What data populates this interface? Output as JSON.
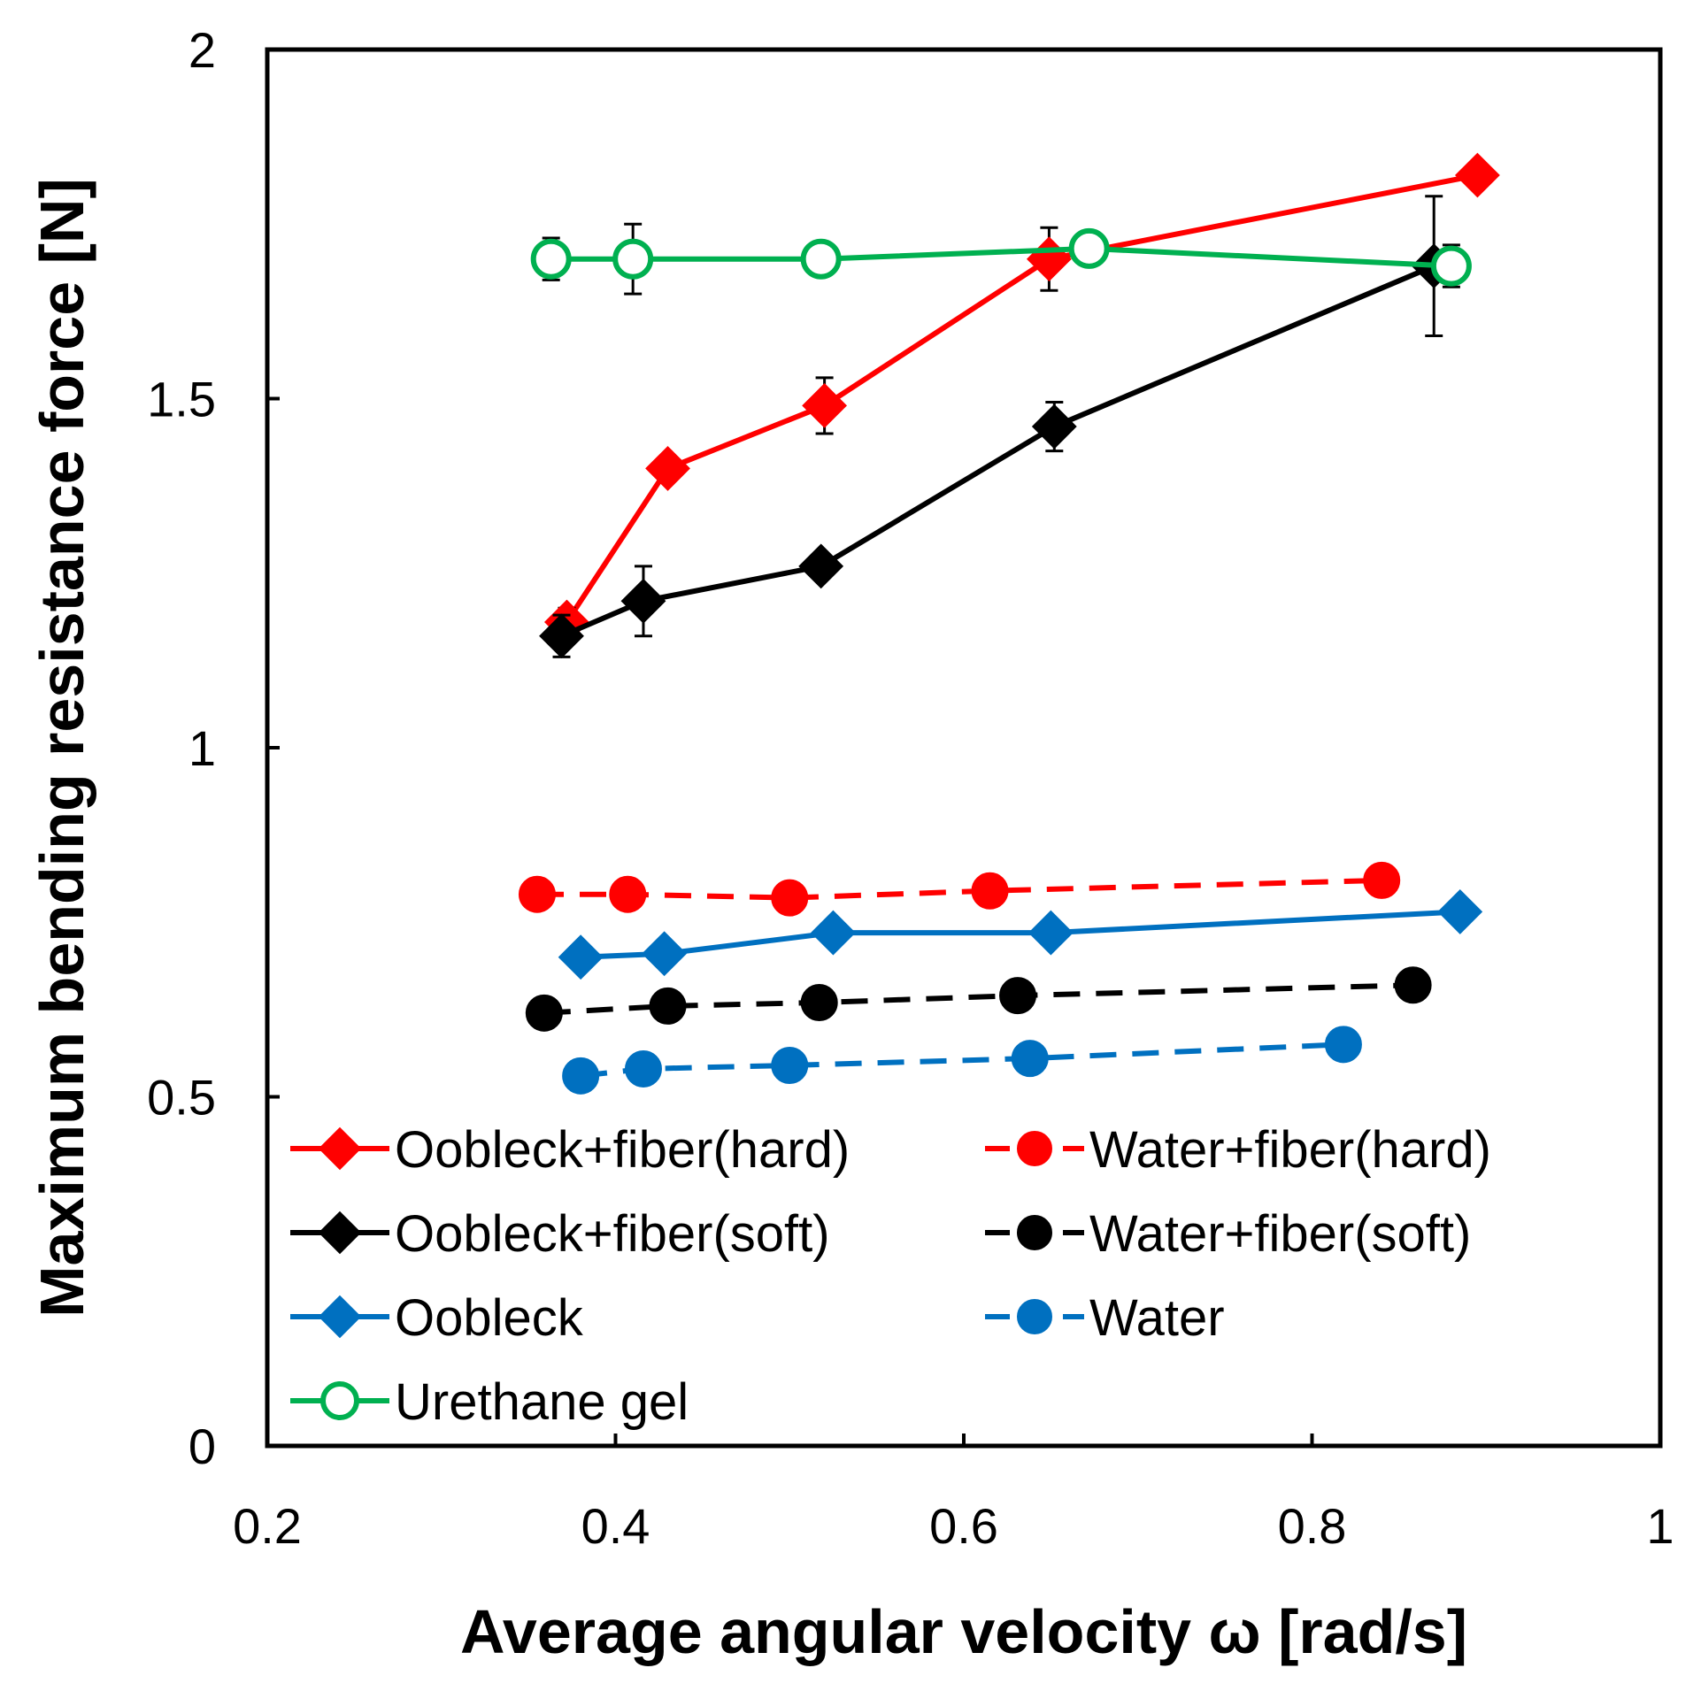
{
  "chart_data": {
    "type": "line",
    "title": "",
    "xlabel": "Average angular velocity ω [rad/s]",
    "ylabel": "Maximum bending resistance force [N]",
    "xlim": [
      0.2,
      1
    ],
    "ylim": [
      0,
      2
    ],
    "x_ticks": [
      "0.2",
      "0.4",
      "0.6",
      "0.8",
      "1"
    ],
    "y_ticks": [
      "0",
      "0.5",
      "1",
      "1.5",
      "2"
    ],
    "grid": false,
    "legend_position": "bottom-left, two columns",
    "series": [
      {
        "name": "Oobleck+fiber(hard)",
        "color": "#ff0000",
        "marker": "diamond",
        "dash": false,
        "points": [
          {
            "x": 0.372,
            "y": 1.18
          },
          {
            "x": 0.43,
            "y": 1.4
          },
          {
            "x": 0.52,
            "y": 1.49
          },
          {
            "x": 0.649,
            "y": 1.7
          },
          {
            "x": 0.895,
            "y": 1.82
          }
        ],
        "errors": [
          0.02,
          0,
          0.04,
          0.045,
          0
        ]
      },
      {
        "name": "Water+fiber(hard)",
        "color": "#ff0000",
        "marker": "circle",
        "dash": true,
        "points": [
          {
            "x": 0.355,
            "y": 0.79
          },
          {
            "x": 0.407,
            "y": 0.79
          },
          {
            "x": 0.5,
            "y": 0.785
          },
          {
            "x": 0.615,
            "y": 0.795
          },
          {
            "x": 0.84,
            "y": 0.81
          }
        ],
        "errors": [
          0,
          0,
          0,
          0,
          0
        ]
      },
      {
        "name": "Oobleck+fiber(soft)",
        "color": "#000000",
        "marker": "diamond",
        "dash": false,
        "points": [
          {
            "x": 0.369,
            "y": 1.16
          },
          {
            "x": 0.416,
            "y": 1.21
          },
          {
            "x": 0.518,
            "y": 1.26
          },
          {
            "x": 0.652,
            "y": 1.46
          },
          {
            "x": 0.87,
            "y": 1.69
          }
        ],
        "errors": [
          0.03,
          0.05,
          0,
          0.035,
          0.1
        ]
      },
      {
        "name": "Water+fiber(soft)",
        "color": "#000000",
        "marker": "circle",
        "dash": true,
        "points": [
          {
            "x": 0.359,
            "y": 0.62
          },
          {
            "x": 0.43,
            "y": 0.63
          },
          {
            "x": 0.517,
            "y": 0.635
          },
          {
            "x": 0.631,
            "y": 0.645
          },
          {
            "x": 0.858,
            "y": 0.66
          }
        ],
        "errors": [
          0,
          0,
          0,
          0,
          0
        ]
      },
      {
        "name": "Oobleck",
        "color": "#0070c0",
        "marker": "diamond",
        "dash": false,
        "points": [
          {
            "x": 0.38,
            "y": 0.7
          },
          {
            "x": 0.428,
            "y": 0.705
          },
          {
            "x": 0.525,
            "y": 0.735
          },
          {
            "x": 0.65,
            "y": 0.735
          },
          {
            "x": 0.885,
            "y": 0.765
          }
        ],
        "errors": [
          0,
          0,
          0,
          0,
          0
        ]
      },
      {
        "name": "Water",
        "color": "#0070c0",
        "marker": "circle",
        "dash": true,
        "points": [
          {
            "x": 0.38,
            "y": 0.53
          },
          {
            "x": 0.416,
            "y": 0.54
          },
          {
            "x": 0.5,
            "y": 0.545
          },
          {
            "x": 0.638,
            "y": 0.555
          },
          {
            "x": 0.818,
            "y": 0.575
          }
        ],
        "errors": [
          0,
          0,
          0,
          0,
          0
        ]
      },
      {
        "name": "Urethane gel",
        "color": "#00b050",
        "marker": "open-circle",
        "dash": false,
        "points": [
          {
            "x": 0.363,
            "y": 1.7
          },
          {
            "x": 0.41,
            "y": 1.7
          },
          {
            "x": 0.518,
            "y": 1.7
          },
          {
            "x": 0.672,
            "y": 1.715
          },
          {
            "x": 0.88,
            "y": 1.69
          }
        ],
        "errors": [
          0.03,
          0.05,
          0,
          0,
          0.03
        ]
      }
    ]
  }
}
